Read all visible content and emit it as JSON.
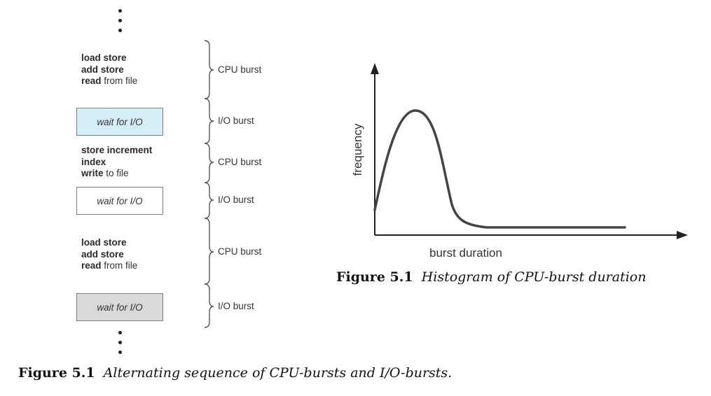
{
  "sequence": {
    "blocks": [
      {
        "type": "cpu",
        "lines": [
          {
            "bold": "load store",
            "rest": ""
          },
          {
            "bold": "add store",
            "rest": ""
          },
          {
            "bold": "read",
            "rest": " from file"
          }
        ],
        "burst_label": "CPU burst"
      },
      {
        "type": "io",
        "text": "wait for I/O",
        "fill": "#d6eef8",
        "burst_label": "I/O burst"
      },
      {
        "type": "cpu",
        "lines": [
          {
            "bold": "store increment",
            "rest": ""
          },
          {
            "bold": "index",
            "rest": ""
          },
          {
            "bold": "write",
            "rest": " to file"
          }
        ],
        "burst_label": "CPU burst"
      },
      {
        "type": "io",
        "text": "wait for I/O",
        "fill": "#ffffff",
        "burst_label": "I/O burst"
      },
      {
        "type": "cpu",
        "lines": [
          {
            "bold": "load store",
            "rest": ""
          },
          {
            "bold": "add store",
            "rest": ""
          },
          {
            "bold": "read",
            "rest": " from file"
          }
        ],
        "burst_label": "CPU burst"
      },
      {
        "type": "io",
        "text": "wait for I/O",
        "fill": "#d9d9d9",
        "burst_label": "I/O burst"
      }
    ],
    "caption_number": "Figure 5.1",
    "caption_text": "Alternating sequence of CPU-bursts and I/O-bursts."
  },
  "histogram": {
    "xlabel": "burst duration",
    "ylabel": "frequency",
    "caption_number": "Figure 5.1",
    "caption_text": "Histogram of CPU-burst duration"
  }
}
